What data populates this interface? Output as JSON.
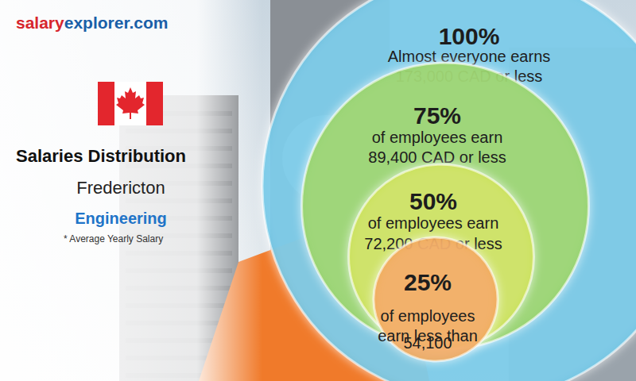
{
  "chart_data": {
    "type": "nested_circles",
    "source": [
      "salary",
      "explorer.com"
    ],
    "title": "Salaries Distribution",
    "subtitle": "Fredericton",
    "category": "Engineering",
    "note": "* Average Yearly Salary",
    "values": [
      100,
      75,
      50,
      25
    ],
    "value_labels": [
      "100%",
      "75%",
      "50%",
      "25%"
    ],
    "texts": [
      "Almost everyone earns",
      "of employees earn",
      "of employees earn",
      "of employees\nearn less than"
    ],
    "salaries": [
      173000,
      89400,
      72200,
      54100
    ],
    "salary_labels": [
      "173,000 CAD or less",
      "89,400 CAD or less",
      "72,200 CAD or less",
      "54,100"
    ],
    "colors": [
      "#5ec4e6",
      "#8fd14f",
      "#cbe03a",
      "#f2a13c"
    ]
  }
}
